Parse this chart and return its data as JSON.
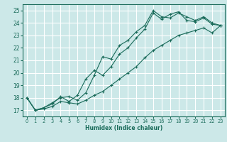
{
  "xlabel": "Humidex (Indice chaleur)",
  "bg_color": "#cce8e8",
  "grid_color": "#ffffff",
  "line_color": "#1a6b5a",
  "xlim": [
    -0.5,
    23.5
  ],
  "ylim": [
    16.5,
    25.5
  ],
  "xticks": [
    0,
    1,
    2,
    3,
    4,
    5,
    6,
    7,
    8,
    9,
    10,
    11,
    12,
    13,
    14,
    15,
    16,
    17,
    18,
    19,
    20,
    21,
    22,
    23
  ],
  "yticks": [
    17,
    18,
    19,
    20,
    21,
    22,
    23,
    24,
    25
  ],
  "line1_x": [
    0,
    1,
    2,
    3,
    4,
    5,
    6,
    7,
    8,
    9,
    10,
    11,
    12,
    13,
    14,
    15,
    16,
    17,
    18,
    19,
    20,
    21,
    22,
    23
  ],
  "line1_y": [
    18.0,
    17.0,
    17.2,
    17.6,
    18.0,
    18.1,
    17.8,
    18.4,
    19.8,
    21.3,
    21.1,
    22.2,
    22.6,
    23.3,
    23.8,
    25.0,
    24.5,
    24.4,
    24.8,
    24.5,
    24.2,
    24.5,
    24.0,
    23.8
  ],
  "line2_x": [
    0,
    1,
    2,
    3,
    4,
    5,
    6,
    7,
    8,
    9,
    10,
    11,
    12,
    13,
    14,
    15,
    16,
    17,
    18,
    19,
    20,
    21,
    22,
    23
  ],
  "line2_y": [
    18.0,
    17.0,
    17.2,
    17.5,
    18.1,
    17.7,
    18.2,
    19.5,
    20.2,
    19.8,
    20.5,
    21.5,
    22.0,
    22.8,
    23.5,
    24.8,
    24.3,
    24.7,
    24.9,
    24.2,
    24.1,
    24.4,
    23.9,
    23.8
  ],
  "line3_x": [
    0,
    1,
    2,
    3,
    4,
    5,
    6,
    7,
    8,
    9,
    10,
    11,
    12,
    13,
    14,
    15,
    16,
    17,
    18,
    19,
    20,
    21,
    22,
    23
  ],
  "line3_y": [
    18.0,
    17.0,
    17.1,
    17.3,
    17.7,
    17.6,
    17.5,
    17.8,
    18.2,
    18.5,
    19.0,
    19.5,
    20.0,
    20.5,
    21.2,
    21.8,
    22.2,
    22.6,
    23.0,
    23.2,
    23.4,
    23.6,
    23.2,
    23.8
  ]
}
